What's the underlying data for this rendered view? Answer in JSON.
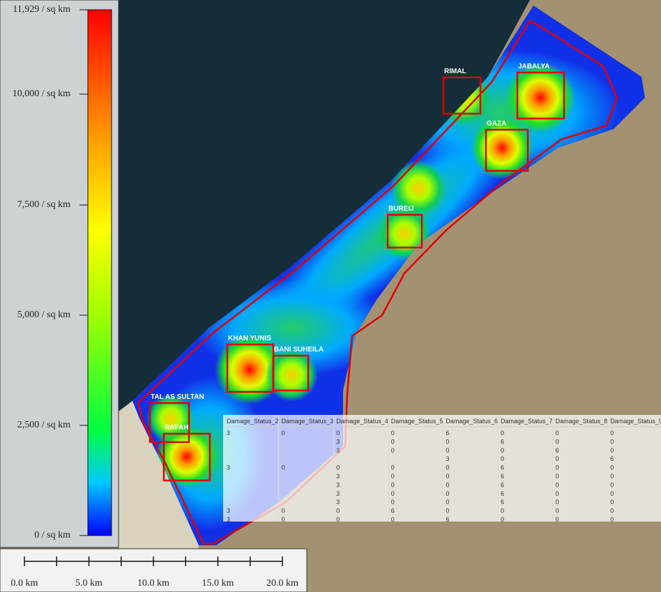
{
  "legend": {
    "labels": [
      "11,929 / sq km",
      "10,000 / sq km",
      "7,500 / sq km",
      "5,000 / sq km",
      "2,500 / sq km",
      "0 / sq km"
    ]
  },
  "scale_bar": {
    "labels": [
      "0.0 km",
      "5.0 km",
      "10.0 km",
      "15.0 km",
      "20.0 km"
    ]
  },
  "places": [
    "RIMAL",
    "JABALYA",
    "GAZA",
    "BUREIJ",
    "KHAN YUNIS",
    "BANI SUHEILA",
    "TAL AS SULTAN",
    "RAFAH"
  ],
  "table": {
    "headers": [
      "Damage_Status_2",
      "Damage_Status_3",
      "Damage_Status_4",
      "Damage_Status_5",
      "Damage_Status_6",
      "Damage_Status_7",
      "Damage_Status_8",
      "Damage_Status_9"
    ],
    "rows": [
      [
        3,
        0,
        0,
        0,
        6,
        0,
        0,
        0
      ],
      [
        null,
        null,
        3,
        0,
        0,
        6,
        0,
        0
      ],
      [
        null,
        null,
        3,
        0,
        0,
        0,
        6,
        0
      ],
      [
        null,
        null,
        null,
        null,
        3,
        0,
        0,
        6
      ],
      [
        3,
        0,
        0,
        0,
        0,
        6,
        0,
        0
      ],
      [
        null,
        null,
        3,
        0,
        0,
        6,
        0,
        0
      ],
      [
        null,
        null,
        3,
        0,
        0,
        6,
        0,
        0
      ],
      [
        null,
        null,
        3,
        0,
        0,
        6,
        0,
        0
      ],
      [
        null,
        null,
        3,
        0,
        0,
        6,
        0,
        0
      ],
      [
        3,
        0,
        0,
        6,
        0,
        0,
        0,
        0
      ],
      [
        3,
        0,
        0,
        0,
        6,
        0,
        0,
        0
      ]
    ]
  }
}
